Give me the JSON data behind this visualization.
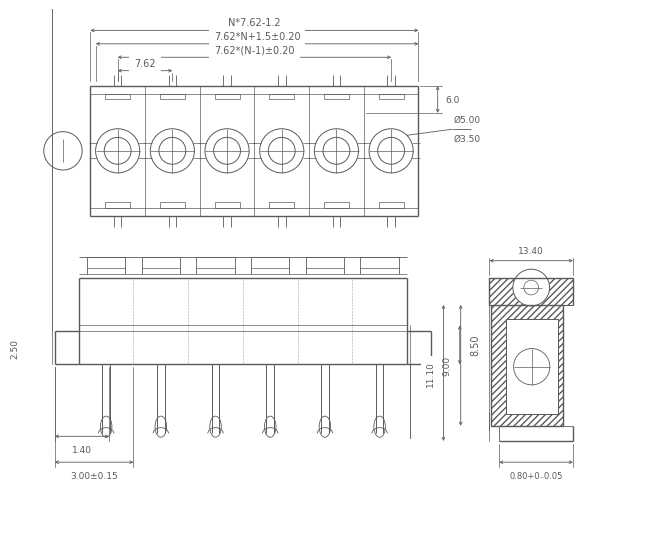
{
  "bg_color": "#ffffff",
  "line_color": "#5a5a5a",
  "dim_color": "#5a5a5a",
  "text_color": "#5a5a5a",
  "fig_width": 6.29,
  "fig_height": 5.51,
  "n_poles": 6,
  "dim_texts": {
    "n762": "N*7.62-1.2",
    "762n15": "7.62*N+1.5±0.20",
    "762n1": "7.62*(N-1)±0.20",
    "762": "7.62",
    "6p0": "6.0",
    "phi5": "Ø5.00",
    "phi35": "Ø3.50",
    "8p50": "8.50",
    "9p00": "9.00",
    "11p10": "11.10",
    "13p40": "13.40",
    "1p40": "1.40",
    "2p50": "2.50",
    "3p00": "3.00±0.15",
    "0p80": "0.80+0₋0.05"
  }
}
